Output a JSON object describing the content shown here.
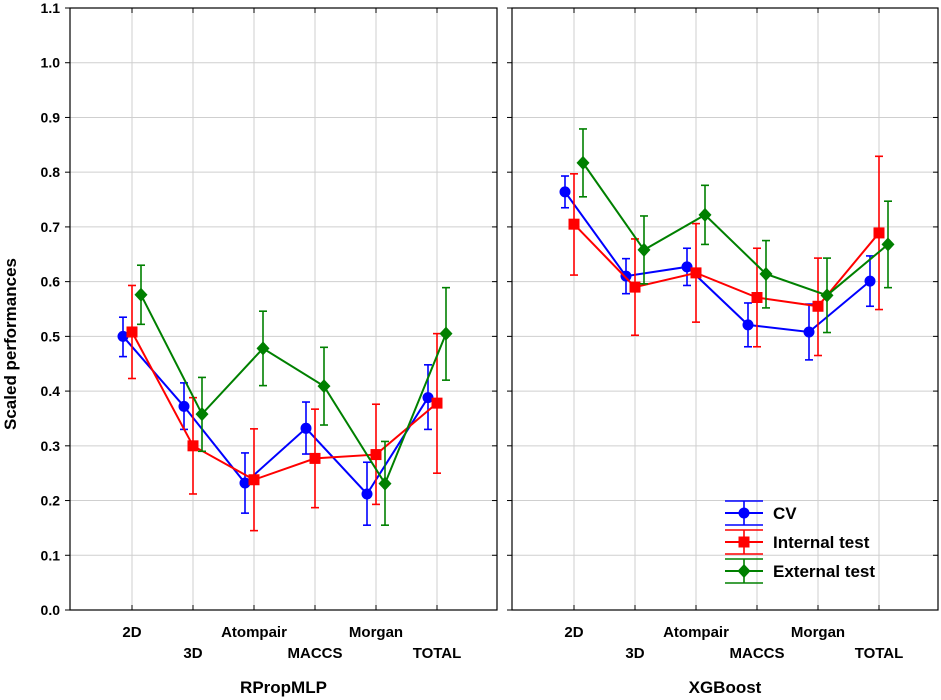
{
  "colors": {
    "CV": "#0000ff",
    "Internal test": "#ff0000",
    "External test": "#008000"
  },
  "y_axis": {
    "label": "Scaled performances",
    "ylim": [
      0.0,
      1.1
    ],
    "ticks": [
      "0.0",
      "0.1",
      "0.2",
      "0.3",
      "0.4",
      "0.5",
      "0.6",
      "0.7",
      "0.8",
      "0.9",
      "1.0",
      "1.1"
    ]
  },
  "legend": {
    "position": "bottom-right of right panel",
    "entries": [
      "CV",
      "Internal test",
      "External test"
    ]
  },
  "chart_data": [
    {
      "type": "line",
      "title": "RPropMLP",
      "xlabel": "RPropMLP",
      "ylabel": "Scaled performances",
      "ylim": [
        0.0,
        1.1
      ],
      "categories": [
        "2D",
        "3D",
        "Atompair",
        "MACCS",
        "Morgan",
        "TOTAL"
      ],
      "series": [
        {
          "name": "CV",
          "marker": "circle",
          "values": [
            0.5,
            0.372,
            0.232,
            0.332,
            0.212,
            0.388
          ],
          "err_low": [
            0.463,
            0.33,
            0.177,
            0.285,
            0.155,
            0.33
          ],
          "err_high": [
            0.535,
            0.415,
            0.287,
            0.38,
            0.27,
            0.448
          ]
        },
        {
          "name": "Internal test",
          "marker": "square",
          "values": [
            0.508,
            0.3,
            0.238,
            0.277,
            0.284,
            0.378
          ],
          "err_low": [
            0.423,
            0.212,
            0.145,
            0.187,
            0.193,
            0.25
          ],
          "err_high": [
            0.593,
            0.388,
            0.331,
            0.367,
            0.376,
            0.505
          ]
        },
        {
          "name": "External test",
          "marker": "diamond",
          "values": [
            0.576,
            0.358,
            0.478,
            0.409,
            0.231,
            0.505
          ],
          "err_low": [
            0.522,
            0.29,
            0.41,
            0.338,
            0.155,
            0.42
          ],
          "err_high": [
            0.63,
            0.425,
            0.546,
            0.48,
            0.308,
            0.589
          ]
        }
      ]
    },
    {
      "type": "line",
      "title": "XGBoost",
      "xlabel": "XGBoost",
      "ylabel": "Scaled performances",
      "ylim": [
        0.0,
        1.1
      ],
      "categories": [
        "2D",
        "3D",
        "Atompair",
        "MACCS",
        "Morgan",
        "TOTAL"
      ],
      "series": [
        {
          "name": "CV",
          "marker": "circle",
          "values": [
            0.764,
            0.61,
            0.627,
            0.521,
            0.508,
            0.601
          ],
          "err_low": [
            0.735,
            0.578,
            0.593,
            0.481,
            0.457,
            0.555
          ],
          "err_high": [
            0.793,
            0.642,
            0.661,
            0.561,
            0.559,
            0.647
          ]
        },
        {
          "name": "Internal test",
          "marker": "square",
          "values": [
            0.705,
            0.59,
            0.616,
            0.571,
            0.555,
            0.689
          ],
          "err_low": [
            0.612,
            0.502,
            0.526,
            0.481,
            0.465,
            0.549
          ],
          "err_high": [
            0.797,
            0.678,
            0.706,
            0.661,
            0.643,
            0.829
          ]
        },
        {
          "name": "External test",
          "marker": "diamond",
          "values": [
            0.817,
            0.658,
            0.722,
            0.614,
            0.575,
            0.668
          ],
          "err_low": [
            0.755,
            0.596,
            0.668,
            0.552,
            0.507,
            0.589
          ],
          "err_high": [
            0.879,
            0.72,
            0.776,
            0.675,
            0.643,
            0.747
          ]
        }
      ]
    }
  ]
}
